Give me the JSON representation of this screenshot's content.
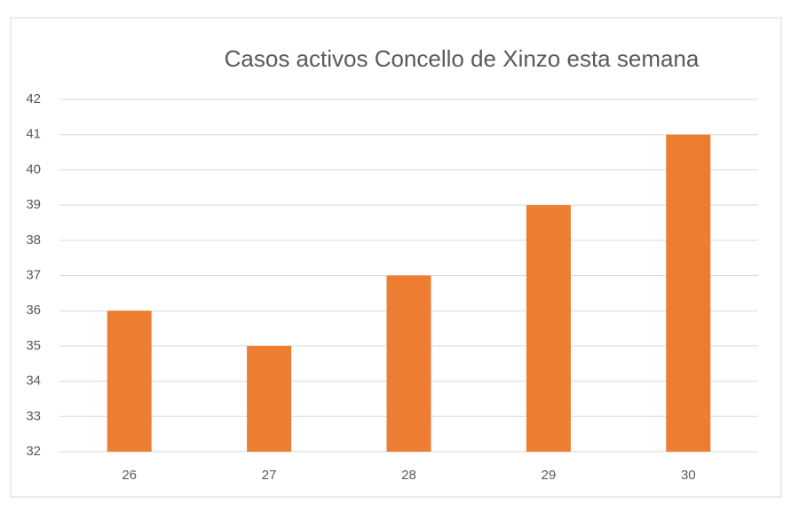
{
  "chart_data": {
    "type": "bar",
    "title": "Casos activos Concello de Xinzo esta semana",
    "categories": [
      "26",
      "27",
      "28",
      "29",
      "30"
    ],
    "values": [
      36,
      35,
      37,
      39,
      41
    ],
    "color": "#ED7D31",
    "ylim": [
      32,
      42
    ],
    "yticks": [
      32,
      33,
      34,
      35,
      36,
      37,
      38,
      39,
      40,
      41,
      42
    ],
    "grid": true
  }
}
